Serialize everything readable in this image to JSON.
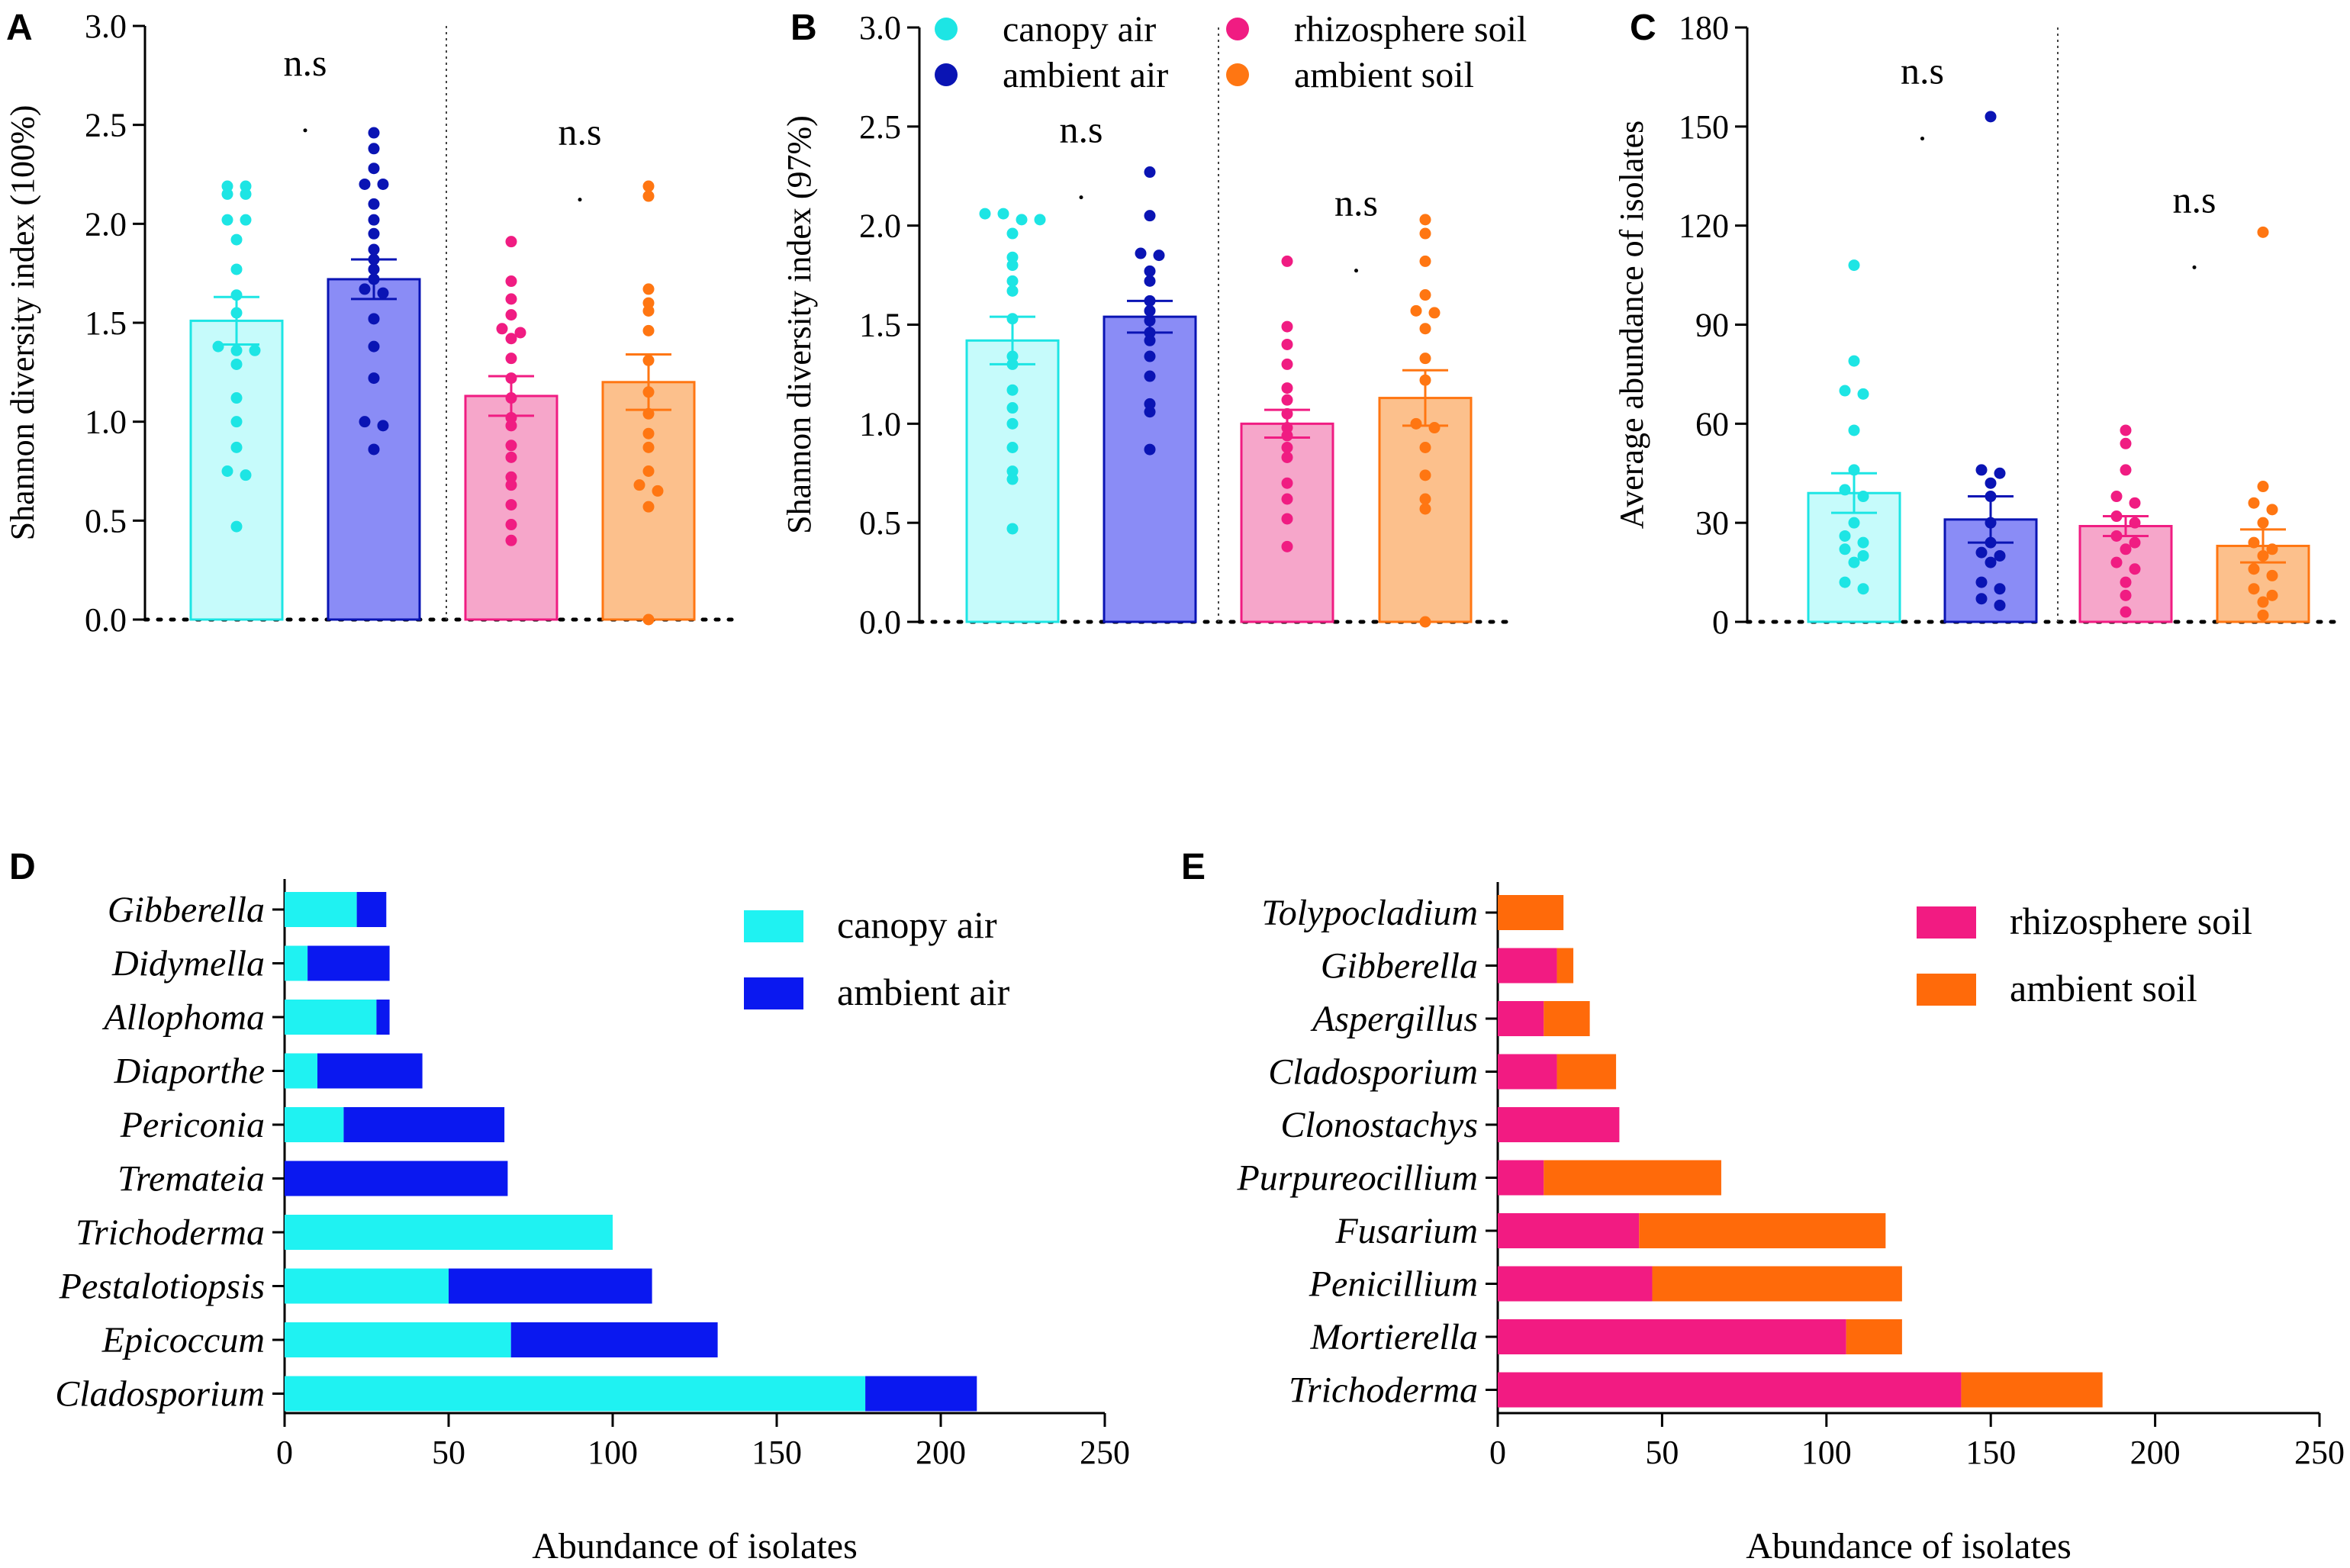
{
  "figure": {
    "panels": [
      "A",
      "B",
      "C",
      "D",
      "E"
    ],
    "significance_label": "n.s",
    "group_colors": {
      "canopy air": "#1de5e4",
      "ambient air": "#0a14b4",
      "rhizosphere soil": "#f01c82",
      "ambient soil": "#ff7612"
    },
    "bar_fill_colors": {
      "canopy air": "#c6fbfb",
      "ambient air": "#8a8cf6",
      "rhizosphere soil": "#f6a6ca",
      "ambient soil": "#fcc08c"
    },
    "stack_colors": {
      "canopy air": "#1ff2f2",
      "ambient air": "#0a18f0",
      "rhizosphere soil": "#f21b82",
      "ambient soil": "#ff6a0a"
    }
  },
  "chart_data": [
    {
      "panel": "A",
      "type": "bar",
      "ylabel": "Shannon diversity index (100%)",
      "ylim": [
        0,
        3.0
      ],
      "yticks": [
        "0.0",
        "0.5",
        "1.0",
        "1.5",
        "2.0",
        "2.5",
        "3.0"
      ],
      "categories": [
        "canopy air",
        "ambient air",
        "rhizosphere soil",
        "ambient soil"
      ],
      "values": [
        1.51,
        1.72,
        1.13,
        1.2
      ],
      "errors": [
        0.12,
        0.1,
        0.1,
        0.14
      ],
      "points": [
        [
          2.19,
          2.19,
          2.15,
          2.15,
          2.02,
          2.02,
          1.92,
          1.77,
          1.64,
          1.55,
          1.38,
          1.36,
          1.36,
          1.29,
          1.12,
          1.0,
          0.87,
          0.75,
          0.73,
          0.47
        ],
        [
          2.46,
          2.38,
          2.28,
          2.2,
          2.2,
          2.1,
          2.02,
          1.95,
          1.87,
          1.82,
          1.77,
          1.72,
          1.67,
          1.65,
          1.52,
          1.38,
          1.22,
          1.0,
          0.98,
          0.86
        ],
        [
          1.91,
          1.71,
          1.62,
          1.54,
          1.47,
          1.45,
          1.42,
          1.32,
          1.22,
          1.12,
          1.02,
          0.98,
          0.88,
          0.82,
          0.72,
          0.68,
          0.58,
          0.48,
          0.4
        ],
        [
          2.19,
          2.14,
          1.67,
          1.6,
          1.56,
          1.46,
          1.31,
          1.15,
          1.04,
          0.94,
          0.87,
          0.75,
          0.68,
          0.65,
          0.57,
          0.0
        ]
      ],
      "annotations": [
        {
          "text": "n.s",
          "x_between": [
            0,
            1
          ],
          "y": 2.75
        },
        {
          "text": "n.s",
          "x_between": [
            2,
            3
          ],
          "y": 2.4
        }
      ]
    },
    {
      "panel": "B",
      "type": "bar",
      "ylabel": "Shannon diversity index (97%)",
      "ylim": [
        0,
        3.0
      ],
      "yticks": [
        "0.0",
        "0.5",
        "1.0",
        "1.5",
        "2.0",
        "2.5",
        "3.0"
      ],
      "categories": [
        "canopy air",
        "ambient air",
        "rhizosphere soil",
        "ambient soil"
      ],
      "legend": [
        "canopy air",
        "ambient air",
        "rhizosphere soil",
        "ambient soil"
      ],
      "values": [
        1.42,
        1.54,
        1.0,
        1.13
      ],
      "errors": [
        0.12,
        0.08,
        0.07,
        0.14
      ],
      "points": [
        [
          2.06,
          2.06,
          2.03,
          2.03,
          1.96,
          1.84,
          1.8,
          1.72,
          1.67,
          1.53,
          1.34,
          1.3,
          1.17,
          1.08,
          1.0,
          0.88,
          0.76,
          0.72,
          0.47
        ],
        [
          2.27,
          2.05,
          1.86,
          1.85,
          1.77,
          1.72,
          1.62,
          1.57,
          1.52,
          1.46,
          1.42,
          1.34,
          1.24,
          1.1,
          1.06,
          0.87
        ],
        [
          1.82,
          1.49,
          1.4,
          1.3,
          1.18,
          1.12,
          1.05,
          0.98,
          0.94,
          0.88,
          0.83,
          0.7,
          0.62,
          0.52,
          0.38
        ],
        [
          2.03,
          1.96,
          1.82,
          1.65,
          1.57,
          1.56,
          1.48,
          1.33,
          1.22,
          1.0,
          0.98,
          0.88,
          0.74,
          0.62,
          0.57,
          0.0
        ]
      ],
      "annotations": [
        {
          "text": "n.s",
          "x_between": [
            0,
            1
          ],
          "y": 2.42
        },
        {
          "text": "n.s",
          "x_between": [
            2,
            3
          ],
          "y": 2.05
        }
      ]
    },
    {
      "panel": "C",
      "type": "bar",
      "ylabel": "Average abundance of  isolates",
      "ylim": [
        0,
        180
      ],
      "yticks": [
        "0",
        "30",
        "60",
        "90",
        "120",
        "150",
        "180"
      ],
      "categories": [
        "canopy air",
        "ambient air",
        "rhizosphere soil",
        "ambient soil"
      ],
      "values": [
        39,
        31,
        29,
        23
      ],
      "errors": [
        6,
        7,
        3,
        5
      ],
      "points": [
        [
          108,
          79,
          70,
          69,
          58,
          46,
          40,
          38,
          30,
          26,
          24,
          22,
          20,
          18,
          12,
          10
        ],
        [
          153,
          46,
          45,
          42,
          38,
          30,
          24,
          21,
          20,
          18,
          12,
          10,
          7,
          5
        ],
        [
          58,
          54,
          46,
          38,
          36,
          32,
          30,
          26,
          24,
          22,
          18,
          16,
          12,
          8,
          3
        ],
        [
          118,
          41,
          36,
          34,
          30,
          24,
          22,
          20,
          16,
          14,
          10,
          8,
          6,
          2
        ]
      ],
      "annotations": [
        {
          "text": "n.s",
          "x_between": [
            0,
            1
          ],
          "y": 163
        },
        {
          "text": "n.s",
          "x_between": [
            2,
            3
          ],
          "y": 124
        }
      ]
    },
    {
      "panel": "D",
      "type": "bar",
      "orientation": "horizontal-stacked",
      "xlabel": "Abundance of isolates",
      "xlim": [
        0,
        250
      ],
      "xticks": [
        "0",
        "50",
        "100",
        "150",
        "200",
        "250"
      ],
      "categories": [
        "Gibberella",
        "Didymella",
        "Allophoma",
        "Diaporthe",
        "Periconia",
        "Tremateia",
        "Trichoderma",
        "Pestalotiopsis",
        "Epicoccum",
        "Cladosporium"
      ],
      "series": [
        {
          "name": "canopy air",
          "values": [
            22,
            7,
            28,
            10,
            18,
            0,
            100,
            50,
            69,
            177
          ]
        },
        {
          "name": "ambient air",
          "values": [
            9,
            25,
            4,
            32,
            49,
            68,
            0,
            62,
            63,
            34
          ]
        }
      ],
      "legend": [
        "canopy air",
        "ambient air"
      ]
    },
    {
      "panel": "E",
      "type": "bar",
      "orientation": "horizontal-stacked",
      "xlabel": "Abundance of isolates",
      "xlim": [
        0,
        250
      ],
      "xticks": [
        "0",
        "50",
        "100",
        "150",
        "200",
        "250"
      ],
      "categories": [
        "Tolypocladium",
        "Gibberella",
        "Aspergillus",
        "Cladosporium",
        "Clonostachys",
        "Purpureocillium",
        "Fusarium",
        "Penicillium",
        "Mortierella",
        "Trichoderma"
      ],
      "series": [
        {
          "name": "rhizosphere soil",
          "values": [
            0,
            18,
            14,
            18,
            37,
            14,
            43,
            47,
            106,
            141
          ]
        },
        {
          "name": "ambient soil",
          "values": [
            20,
            5,
            14,
            18,
            0,
            54,
            75,
            76,
            17,
            43
          ]
        }
      ],
      "legend": [
        "rhizosphere soil",
        "ambient soil"
      ]
    }
  ]
}
